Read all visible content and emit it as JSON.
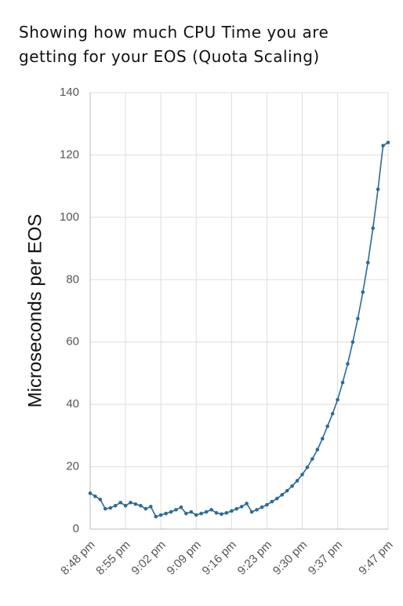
{
  "chart_data": {
    "type": "line",
    "title": "Showing how much CPU Time you are getting for your EOS (Quota Scaling)",
    "y_label": "Microseconds per EOS",
    "categories": [
      "8:48 pm",
      null,
      null,
      null,
      null,
      null,
      null,
      "8:55 pm",
      null,
      null,
      null,
      null,
      null,
      null,
      "9:02 pm",
      null,
      null,
      null,
      null,
      null,
      null,
      "9:09 pm",
      null,
      null,
      null,
      null,
      null,
      null,
      "9:16 pm",
      null,
      null,
      null,
      null,
      null,
      null,
      "9:23 pm",
      null,
      null,
      null,
      null,
      null,
      null,
      "9:30 pm",
      null,
      null,
      null,
      null,
      null,
      null,
      "9:37 pm",
      null,
      null,
      null,
      null,
      null,
      null,
      null,
      null,
      null,
      "9:47 pm"
    ],
    "values": [
      11.5,
      10.5,
      9.5,
      6.5,
      6.8,
      7.5,
      8.5,
      7.5,
      8.5,
      8,
      7.5,
      6.5,
      7.2,
      4,
      4.5,
      5,
      5.5,
      6.2,
      7,
      5,
      5.5,
      4.5,
      5,
      5.5,
      6.2,
      5.2,
      4.8,
      5.2,
      5.8,
      6.5,
      7.2,
      8.2,
      5.5,
      6.2,
      7,
      7.8,
      8.8,
      9.8,
      11,
      12.3,
      13.8,
      15.5,
      17.5,
      19.8,
      22.5,
      25.5,
      29,
      33,
      37,
      41.5,
      47,
      53,
      60,
      67.5,
      76,
      85.5,
      96.5,
      109,
      123,
      124
    ],
    "color": "#2c6a98",
    "ylim": [
      0,
      140
    ],
    "yticks": [
      0,
      20,
      40,
      60,
      80,
      100,
      120,
      140
    ],
    "grid": true
  }
}
